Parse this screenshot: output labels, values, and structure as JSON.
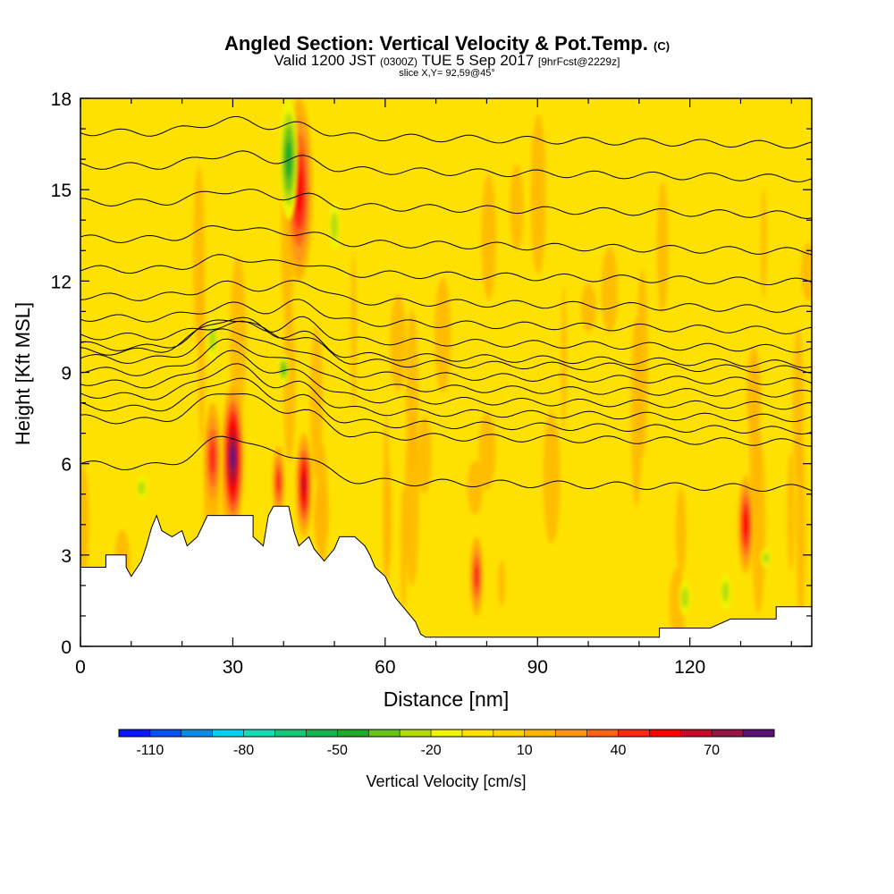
{
  "chart_data": {
    "type": "heatmap",
    "title": "Angled Section: Vertical Velocity & Pot.Temp.",
    "title_unit": "(C)",
    "subtitle_valid": "Valid 1200 JST",
    "subtitle_utc": "(0300Z)",
    "subtitle_date": "TUE 5 Sep 2017",
    "subtitle_fcst": "[9hrFcst@2229z]",
    "slice_label": "slice X,Y= 92,59@45°",
    "xlabel": "Distance [nm]",
    "ylabel": "Height [Kft MSL]",
    "xlim": [
      0,
      144
    ],
    "ylim": [
      0,
      18
    ],
    "x_ticks": [
      0,
      30,
      60,
      90,
      120
    ],
    "y_ticks": [
      0,
      3,
      6,
      9,
      12,
      15,
      18
    ],
    "colorbar": {
      "label": "Vertical Velocity [cm/s]",
      "tick_labels": [
        "-110",
        "-80",
        "-50",
        "-20",
        "10",
        "40",
        "70"
      ],
      "levels": [
        -120,
        -110,
        -100,
        -90,
        -80,
        -70,
        -60,
        -50,
        -40,
        -30,
        -20,
        -10,
        0,
        10,
        20,
        30,
        40,
        50,
        60,
        70,
        80
      ],
      "colors": [
        "#0a14ff",
        "#0a50f5",
        "#0a8ce6",
        "#00d2f0",
        "#14dcb4",
        "#14c878",
        "#14b450",
        "#1eaa28",
        "#64c314",
        "#b4dc0a",
        "#f0f500",
        "#ffe100",
        "#ffd200",
        "#ffb400",
        "#ff9614",
        "#ff6414",
        "#ff2814",
        "#ff0000",
        "#c80a28",
        "#961446",
        "#5a1478"
      ]
    },
    "background_value_range": [
      -10,
      10
    ],
    "updraft_cores": [
      {
        "x": 30,
        "z_min": 3.8,
        "z_max": 8.6,
        "peak_cm_s": 80
      },
      {
        "x": 44,
        "z_min": 3.6,
        "z_max": 7.0,
        "peak_cm_s": 60
      },
      {
        "x": 26,
        "z_min": 4.4,
        "z_max": 8.0,
        "peak_cm_s": 40
      },
      {
        "x": 39,
        "z_min": 4.2,
        "z_max": 6.6,
        "peak_cm_s": 40
      },
      {
        "x": 43,
        "z_min": 12.0,
        "z_max": 18.0,
        "peak_cm_s": 50
      },
      {
        "x": 78,
        "z_min": 1.0,
        "z_max": 3.6,
        "peak_cm_s": 40
      },
      {
        "x": 131,
        "z_min": 2.4,
        "z_max": 5.6,
        "peak_cm_s": 50
      }
    ],
    "downdraft_cores": [
      {
        "x": 41,
        "z_min": 14.0,
        "z_max": 18.0,
        "peak_cm_s": -40
      },
      {
        "x": 40,
        "z_min": 8.6,
        "z_max": 9.6,
        "peak_cm_s": -30
      },
      {
        "x": 26,
        "z_min": 9.4,
        "z_max": 10.8,
        "peak_cm_s": -20
      },
      {
        "x": 50,
        "z_min": 13.0,
        "z_max": 14.6,
        "peak_cm_s": -20
      },
      {
        "x": 12,
        "z_min": 4.8,
        "z_max": 5.6,
        "peak_cm_s": -20
      },
      {
        "x": 119,
        "z_min": 1.0,
        "z_max": 2.2,
        "peak_cm_s": -20
      },
      {
        "x": 127,
        "z_min": 1.2,
        "z_max": 2.4,
        "peak_cm_s": -20
      },
      {
        "x": 135,
        "z_min": 2.6,
        "z_max": 3.2,
        "peak_cm_s": -20
      }
    ],
    "isentropes_z": [
      5.4,
      6.9,
      7.3,
      7.7,
      8.1,
      8.5,
      8.9,
      9.3,
      9.7,
      10.2,
      10.8,
      11.5,
      12.4,
      13.4,
      14.6,
      15.8,
      16.9
    ],
    "terrain": [
      {
        "x": 0,
        "z": 2.6
      },
      {
        "x": 5,
        "z": 2.6
      },
      {
        "x": 5,
        "z": 3.0
      },
      {
        "x": 9,
        "z": 3.0
      },
      {
        "x": 9,
        "z": 2.6
      },
      {
        "x": 10,
        "z": 2.3
      },
      {
        "x": 12,
        "z": 2.8
      },
      {
        "x": 13,
        "z": 3.3
      },
      {
        "x": 14,
        "z": 3.9
      },
      {
        "x": 15,
        "z": 4.3
      },
      {
        "x": 16,
        "z": 3.8
      },
      {
        "x": 18,
        "z": 3.6
      },
      {
        "x": 20,
        "z": 3.8
      },
      {
        "x": 21,
        "z": 3.3
      },
      {
        "x": 23,
        "z": 3.6
      },
      {
        "x": 25,
        "z": 4.3
      },
      {
        "x": 34,
        "z": 4.3
      },
      {
        "x": 34,
        "z": 3.6
      },
      {
        "x": 36,
        "z": 3.3
      },
      {
        "x": 37,
        "z": 4.3
      },
      {
        "x": 38,
        "z": 4.6
      },
      {
        "x": 41,
        "z": 4.6
      },
      {
        "x": 42,
        "z": 3.8
      },
      {
        "x": 43,
        "z": 3.3
      },
      {
        "x": 45,
        "z": 3.6
      },
      {
        "x": 46,
        "z": 3.2
      },
      {
        "x": 48,
        "z": 2.8
      },
      {
        "x": 50,
        "z": 3.2
      },
      {
        "x": 51,
        "z": 3.6
      },
      {
        "x": 54,
        "z": 3.6
      },
      {
        "x": 56,
        "z": 3.3
      },
      {
        "x": 57,
        "z": 3.0
      },
      {
        "x": 58,
        "z": 2.6
      },
      {
        "x": 60,
        "z": 2.3
      },
      {
        "x": 62,
        "z": 1.6
      },
      {
        "x": 64,
        "z": 1.2
      },
      {
        "x": 66,
        "z": 0.8
      },
      {
        "x": 67,
        "z": 0.4
      },
      {
        "x": 68,
        "z": 0.3
      },
      {
        "x": 114,
        "z": 0.3
      },
      {
        "x": 114,
        "z": 0.6
      },
      {
        "x": 120,
        "z": 0.6
      },
      {
        "x": 124,
        "z": 0.6
      },
      {
        "x": 128,
        "z": 0.9
      },
      {
        "x": 137,
        "z": 0.9
      },
      {
        "x": 137,
        "z": 1.3
      },
      {
        "x": 144,
        "z": 1.3
      }
    ]
  }
}
